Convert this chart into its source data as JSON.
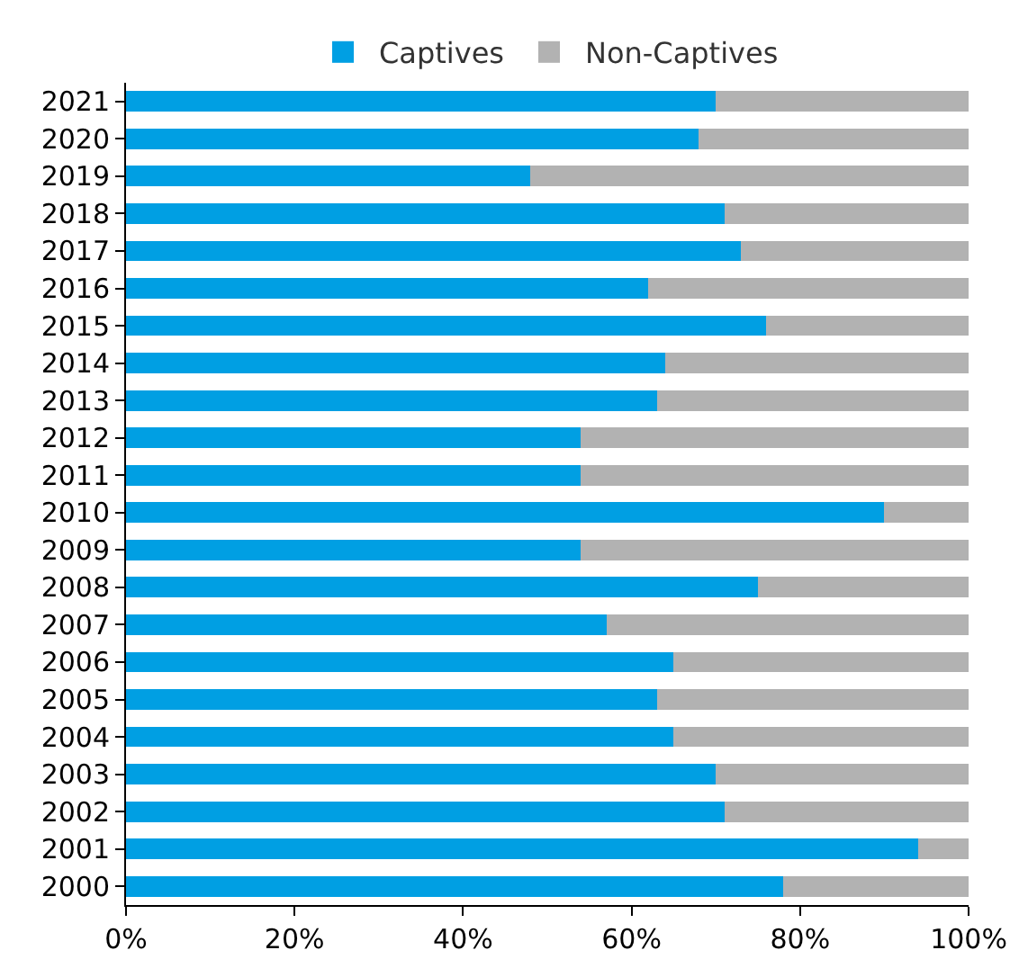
{
  "chart_data": {
    "type": "bar",
    "orientation": "horizontal",
    "stacked": true,
    "legend": "top",
    "categories": [
      "2021",
      "2020",
      "2019",
      "2018",
      "2017",
      "2016",
      "2015",
      "2014",
      "2013",
      "2012",
      "2011",
      "2010",
      "2009",
      "2008",
      "2007",
      "2006",
      "2005",
      "2004",
      "2003",
      "2002",
      "2001",
      "2000"
    ],
    "series": [
      {
        "name": "Captives",
        "color": "#009fe3",
        "values": [
          70,
          68,
          48,
          71,
          73,
          62,
          76,
          64,
          63,
          54,
          54,
          90,
          54,
          75,
          57,
          65,
          63,
          65,
          70,
          71,
          94,
          78
        ]
      },
      {
        "name": "Non-Captives",
        "color": "#b2b2b2",
        "values": [
          30,
          32,
          52,
          29,
          27,
          38,
          24,
          36,
          37,
          46,
          46,
          10,
          46,
          25,
          43,
          35,
          37,
          35,
          30,
          29,
          6,
          22
        ]
      }
    ],
    "xlim": [
      0,
      100
    ],
    "xticks": [
      {
        "value": 0,
        "label": "0%"
      },
      {
        "value": 20,
        "label": "20%"
      },
      {
        "value": 40,
        "label": "40%"
      },
      {
        "value": 60,
        "label": "60%"
      },
      {
        "value": 80,
        "label": "80%"
      },
      {
        "value": 100,
        "label": "100%"
      }
    ],
    "grid": false
  }
}
